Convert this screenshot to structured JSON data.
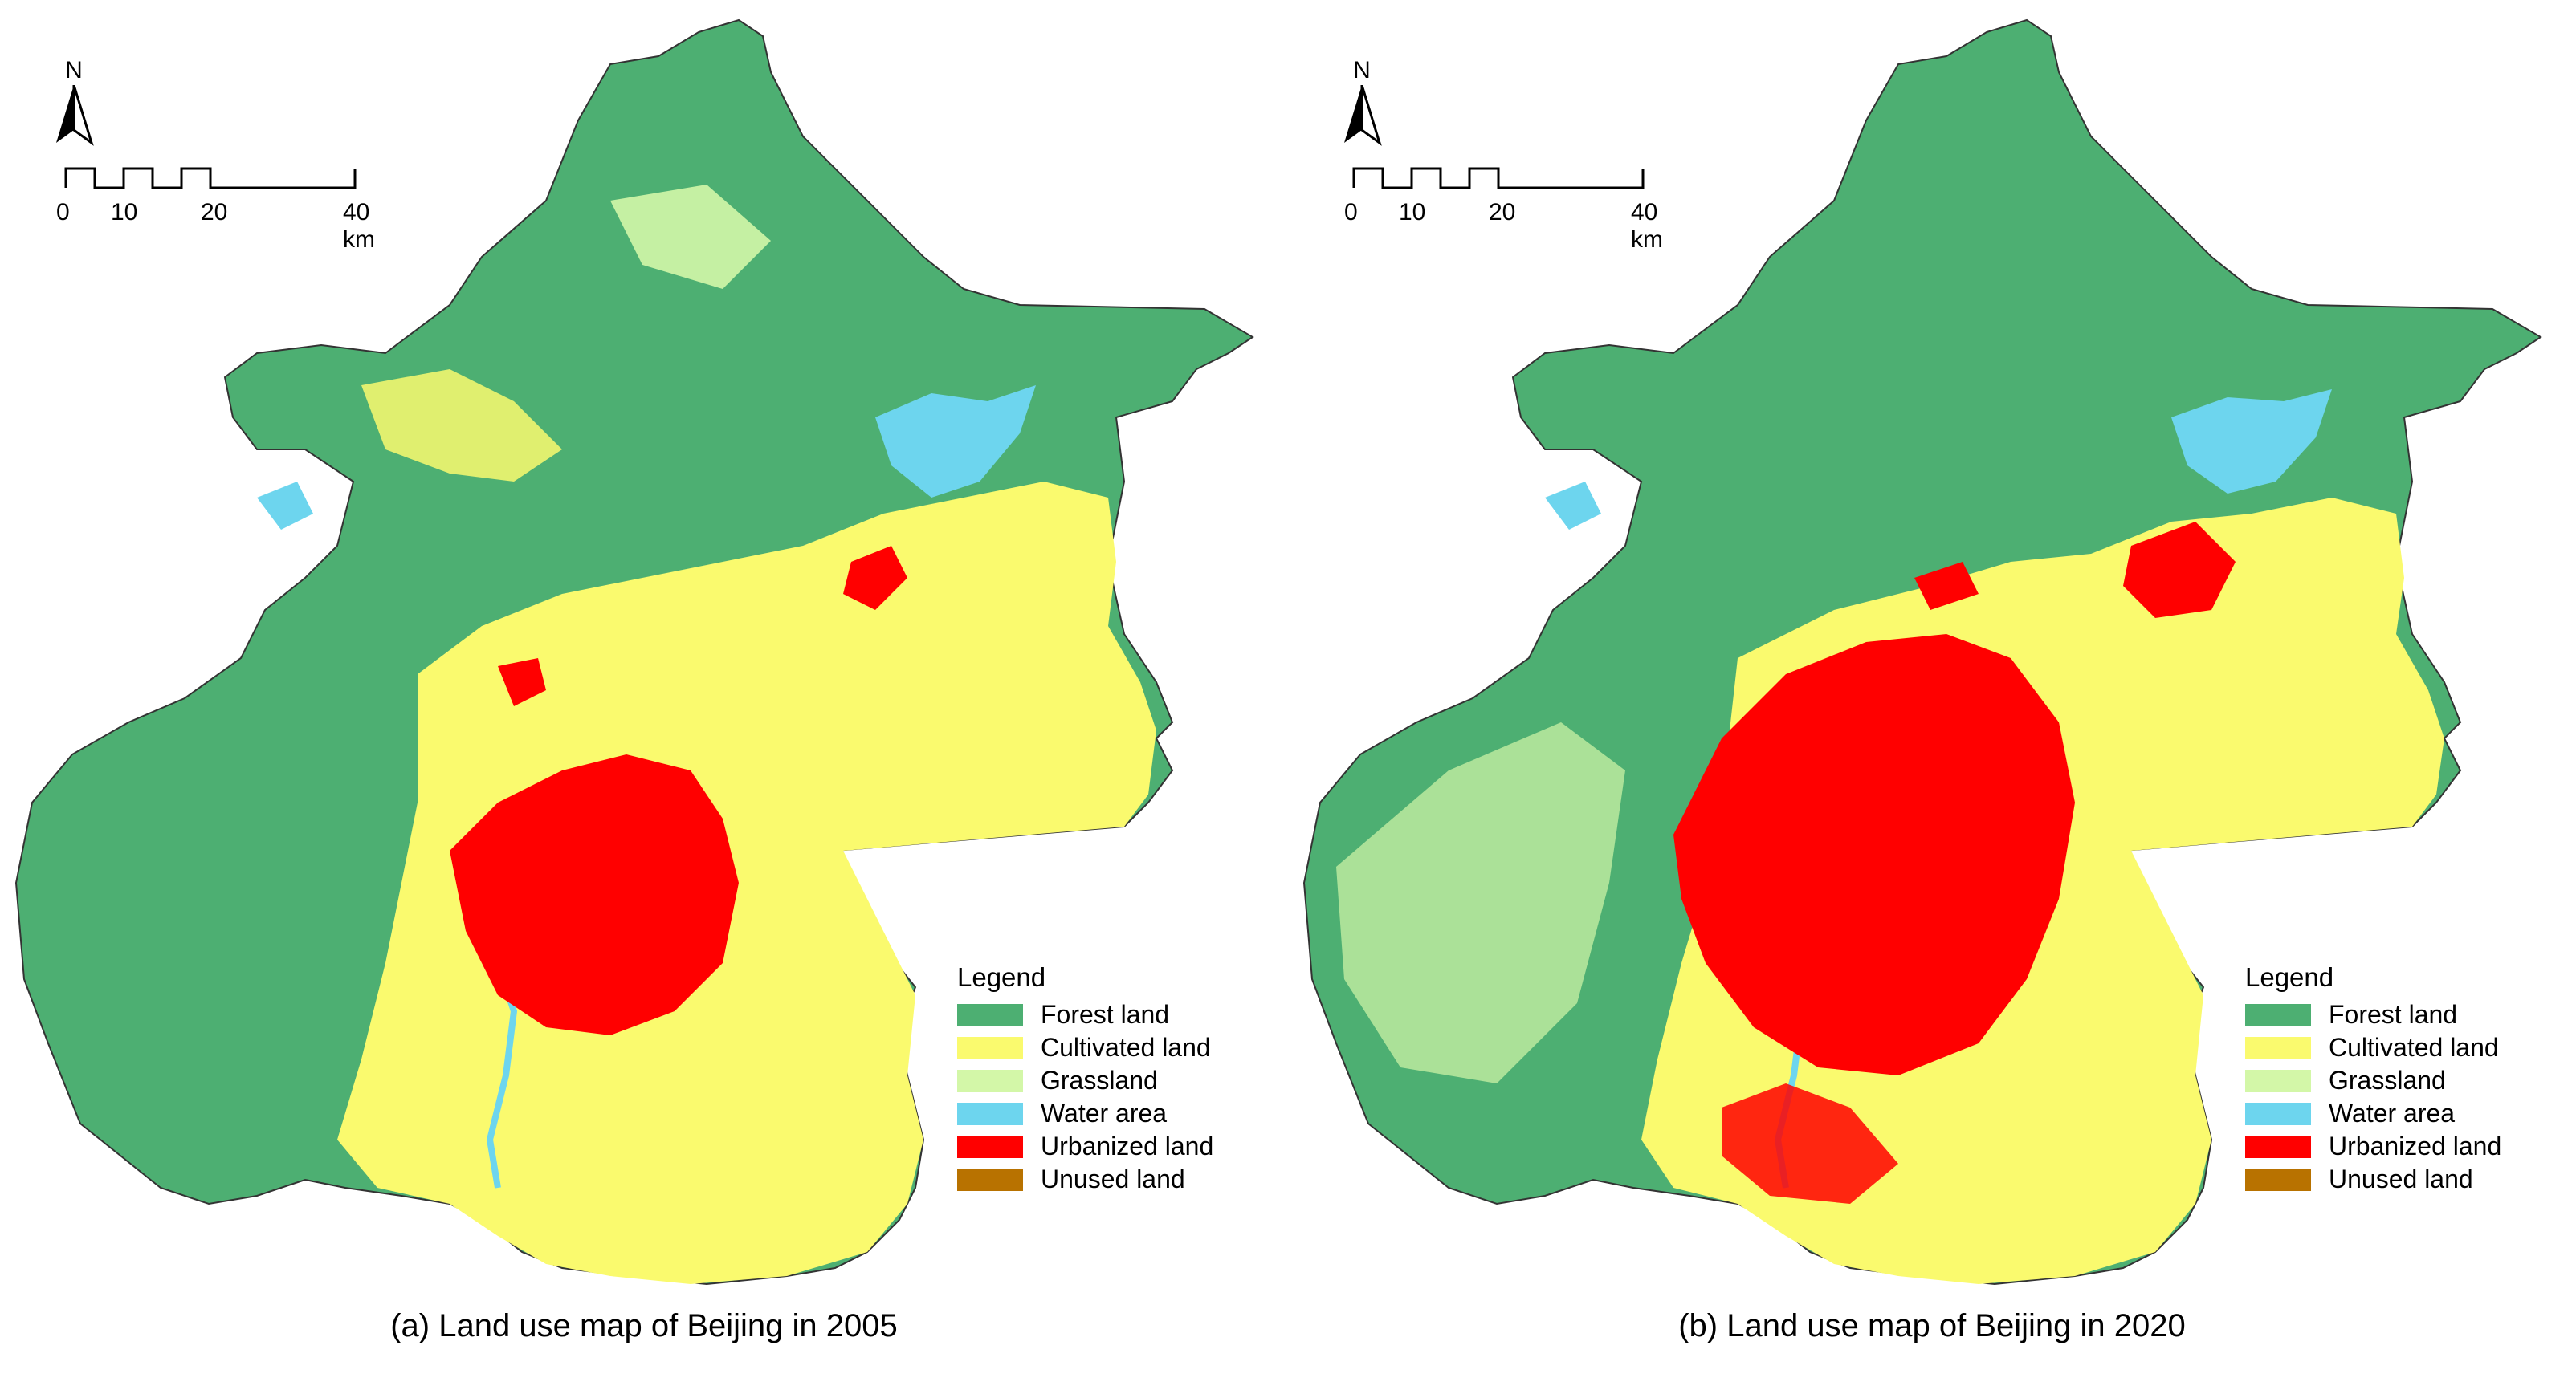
{
  "legend": {
    "title": "Legend",
    "items": [
      {
        "label": "Forest land",
        "color": "#4daf72"
      },
      {
        "label": "Cultivated land",
        "color": "#fafa6e"
      },
      {
        "label": "Grassland",
        "color": "#d3f7a8"
      },
      {
        "label": "Water area",
        "color": "#6dd5ee"
      },
      {
        "label": "Urbanized land",
        "color": "#ff0000"
      },
      {
        "label": "Unused land",
        "color": "#b87200"
      }
    ]
  },
  "north_arrow": {
    "label": "N"
  },
  "scale_bar": {
    "labels": [
      "0",
      "10",
      "20",
      "40 km"
    ]
  },
  "panels": [
    {
      "caption": "(a) Land use map of Beijing in 2005",
      "year": "2005"
    },
    {
      "caption": "(b) Land use map of Beijing in 2020",
      "year": "2020"
    }
  ]
}
